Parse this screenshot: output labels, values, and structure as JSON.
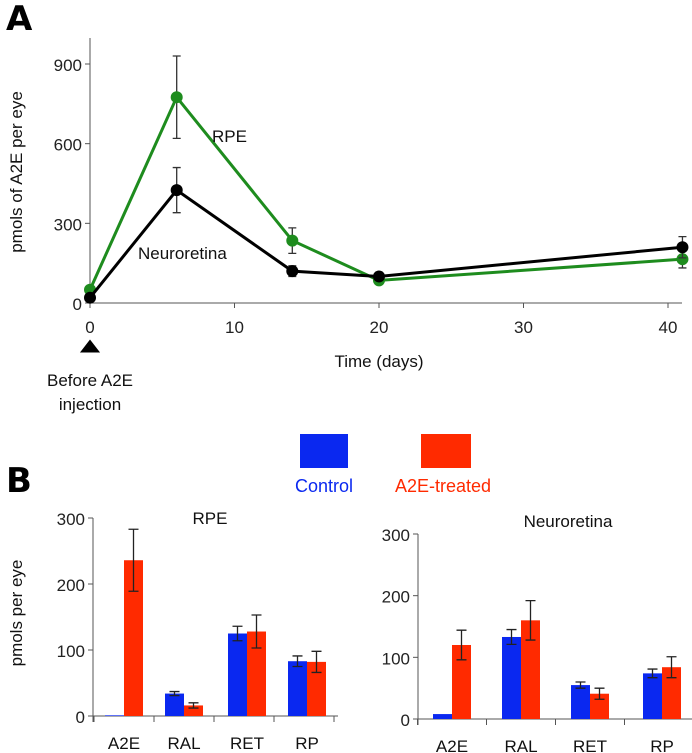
{
  "chart_data": [
    {
      "panel": "A",
      "type": "line",
      "xlabel": "Time (days)",
      "ylabel": "pmols of A2E per eye",
      "xlim": [
        0,
        41
      ],
      "ylim": [
        0,
        1000
      ],
      "xticks": [
        0,
        10,
        20,
        30,
        40
      ],
      "yticks": [
        0,
        300,
        600,
        900
      ],
      "annotation": "Before A2E injection",
      "series": [
        {
          "name": "RPE",
          "color": "#1e8c1e",
          "x": [
            0,
            6,
            14,
            20,
            41
          ],
          "y": [
            50,
            775,
            235,
            85,
            165
          ],
          "err": [
            0,
            155,
            48,
            8,
            33
          ]
        },
        {
          "name": "Neuroretina",
          "color": "#000000",
          "x": [
            0,
            6,
            14,
            20,
            41
          ],
          "y": [
            20,
            425,
            120,
            100,
            210
          ],
          "err": [
            0,
            85,
            20,
            15,
            40
          ]
        }
      ]
    },
    {
      "panel": "B",
      "type": "bar",
      "title": "RPE",
      "ylabel": "pmols per eye",
      "ylim": [
        0,
        300
      ],
      "yticks": [
        0,
        100,
        200,
        300
      ],
      "categories": [
        "A2E",
        "RAL",
        "RET",
        "RP"
      ],
      "series": [
        {
          "name": "Control",
          "color": "#0a28f0",
          "values": [
            1,
            34,
            125,
            83
          ],
          "err": [
            0,
            3,
            11,
            8
          ]
        },
        {
          "name": "A2E-treated",
          "color": "#ff2a00",
          "values": [
            236,
            16,
            128,
            82
          ],
          "err": [
            47,
            4,
            25,
            16
          ]
        }
      ]
    },
    {
      "panel": "B",
      "type": "bar",
      "title": "Neuroretina",
      "ylim": [
        0,
        300
      ],
      "yticks": [
        0,
        100,
        200,
        300
      ],
      "categories": [
        "A2E",
        "RAL",
        "RET",
        "RP"
      ],
      "series": [
        {
          "name": "Control",
          "color": "#0a28f0",
          "values": [
            8,
            133,
            55,
            74
          ],
          "err": [
            0,
            12,
            5,
            7
          ]
        },
        {
          "name": "A2E-treated",
          "color": "#ff2a00",
          "values": [
            120,
            160,
            41,
            84
          ],
          "err": [
            24,
            32,
            9,
            17
          ]
        }
      ]
    }
  ],
  "panel_labels": {
    "a": "A",
    "b": "B"
  },
  "legend": {
    "control": "Control",
    "treated": "A2E-treated"
  }
}
